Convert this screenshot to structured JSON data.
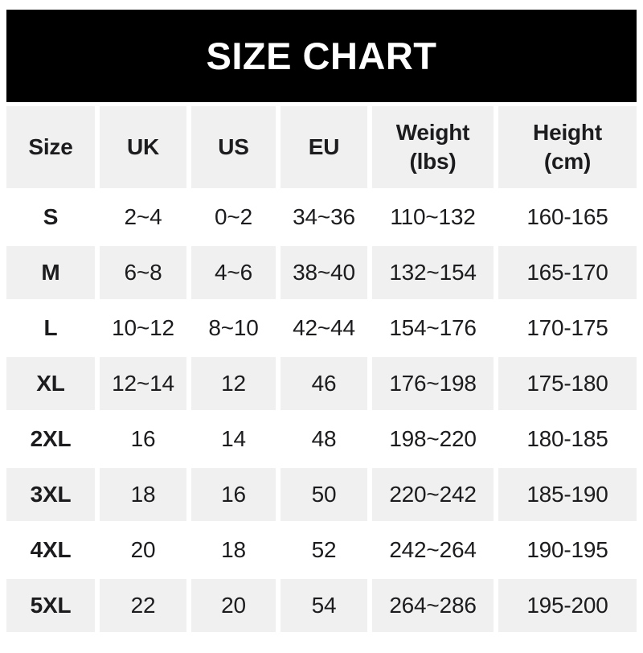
{
  "banner": {
    "title": "SIZE CHART"
  },
  "header": {
    "cells": [
      {
        "label": "Size",
        "unit": ""
      },
      {
        "label": "UK",
        "unit": ""
      },
      {
        "label": "US",
        "unit": ""
      },
      {
        "label": "EU",
        "unit": ""
      },
      {
        "label": "Weight",
        "unit": "(lbs)"
      },
      {
        "label": "Height",
        "unit": "(cm)"
      }
    ]
  },
  "chart_data": {
    "type": "table",
    "title": "SIZE CHART",
    "columns": [
      "Size",
      "UK",
      "US",
      "EU",
      "Weight (lbs)",
      "Height (cm)"
    ],
    "rows": [
      [
        "S",
        "2~4",
        "0~2",
        "34~36",
        "110~132",
        "160-165"
      ],
      [
        "M",
        "6~8",
        "4~6",
        "38~40",
        "132~154",
        "165-170"
      ],
      [
        "L",
        "10~12",
        "8~10",
        "42~44",
        "154~176",
        "170-175"
      ],
      [
        "XL",
        "12~14",
        "12",
        "46",
        "176~198",
        "175-180"
      ],
      [
        "2XL",
        "16",
        "14",
        "48",
        "198~220",
        "180-185"
      ],
      [
        "3XL",
        "18",
        "16",
        "50",
        "220~242",
        "185-190"
      ],
      [
        "4XL",
        "20",
        "18",
        "52",
        "242~264",
        "190-195"
      ],
      [
        "5XL",
        "22",
        "20",
        "54",
        "264~286",
        "195-200"
      ]
    ],
    "layout": {
      "striped_rows": "header,M,XL,3XL,5XL",
      "legend": "none",
      "grid": "off"
    }
  },
  "colors": {
    "banner_bg": "#000000",
    "banner_text": "#ffffff",
    "stripe": "#f0f0f0",
    "text": "#1c1c1e"
  }
}
